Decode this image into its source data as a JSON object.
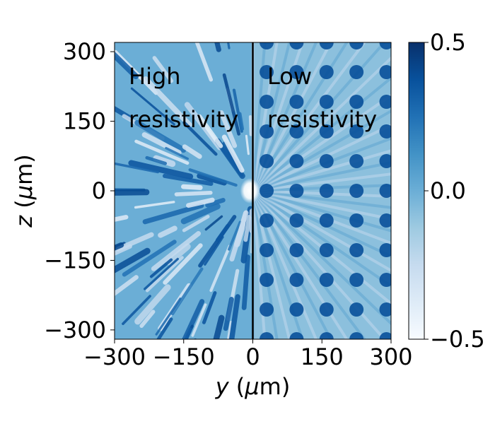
{
  "chart_data": {
    "type": "heatmap",
    "title": "",
    "xlabel": "y (μm)",
    "ylabel": "z (μm)",
    "xlim": [
      -300,
      300
    ],
    "ylim": [
      -320,
      320
    ],
    "x_ticks": [
      -300,
      -150,
      0,
      150,
      300
    ],
    "x_tick_labels": [
      "−300",
      "−150",
      "0",
      "150",
      "300"
    ],
    "y_ticks": [
      -300,
      -150,
      0,
      150,
      300
    ],
    "y_tick_labels": [
      "−300",
      "−150",
      "0",
      "150",
      "300"
    ],
    "colormap": "Blues",
    "colorbar": {
      "min": -0.5,
      "max": 0.5,
      "ticks": [
        0.5,
        0.0,
        -0.5
      ],
      "tick_labels": [
        "0.5",
        "0.0",
        "−0.5"
      ],
      "colors": [
        "#f7fbff",
        "#deebf7",
        "#c6dbef",
        "#9ecae1",
        "#6baed6",
        "#4292c6",
        "#2171b5",
        "#08519c",
        "#08306b"
      ]
    },
    "divider_x": 0,
    "regions": [
      {
        "name": "high",
        "line1": "High",
        "line2": "resistivity",
        "x_range": [
          -300,
          0
        ],
        "pattern": "irregular radial streaks"
      },
      {
        "name": "low",
        "line1": "Low",
        "line2": "resistivity",
        "x_range": [
          0,
          300
        ],
        "pattern": "regular lattice of dark spots with radial rays"
      }
    ]
  }
}
